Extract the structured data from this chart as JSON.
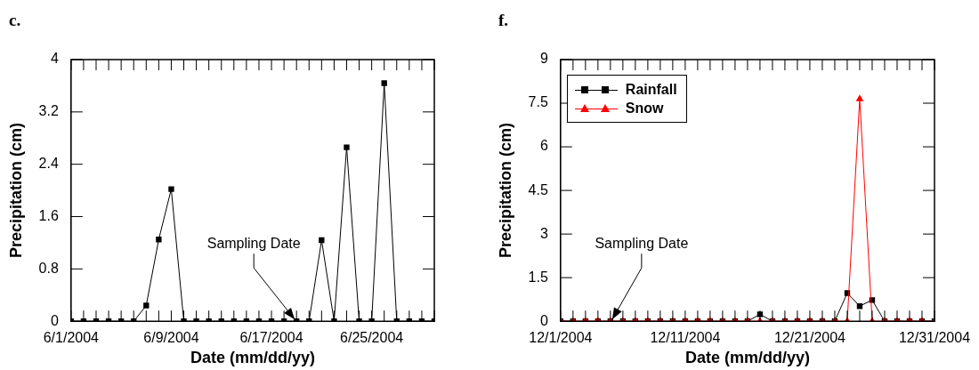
{
  "chart_data": [
    {
      "type": "line",
      "title": "c.",
      "xlabel": "Date (mm/dd/yy)",
      "ylabel": "Precipitation (cm)",
      "x": [
        "2004-06-01",
        "2004-06-02",
        "2004-06-03",
        "2004-06-04",
        "2004-06-05",
        "2004-06-06",
        "2004-06-07",
        "2004-06-08",
        "2004-06-09",
        "2004-06-10",
        "2004-06-11",
        "2004-06-12",
        "2004-06-13",
        "2004-06-14",
        "2004-06-15",
        "2004-06-16",
        "2004-06-17",
        "2004-06-18",
        "2004-06-19",
        "2004-06-20",
        "2004-06-21",
        "2004-06-22",
        "2004-06-23",
        "2004-06-24",
        "2004-06-25",
        "2004-06-26",
        "2004-06-27",
        "2004-06-28",
        "2004-06-29",
        "2004-06-30"
      ],
      "series": [
        {
          "color": "#000000",
          "marker": "square",
          "values": [
            0,
            0,
            0,
            0,
            0,
            0,
            0.24,
            1.25,
            2.02,
            0,
            0,
            0,
            0,
            0,
            0,
            0,
            0,
            0,
            0,
            0,
            1.24,
            0,
            2.66,
            0,
            0,
            3.64,
            0,
            0,
            0,
            0
          ]
        }
      ],
      "xlim": [
        "2004-06-01",
        "2004-06-30"
      ],
      "xticks": [
        {
          "value": "2004-06-01",
          "label": "6/1/2004"
        },
        {
          "value": "2004-06-02",
          "label": null
        },
        {
          "value": "2004-06-03",
          "label": null
        },
        {
          "value": "2004-06-04",
          "label": null
        },
        {
          "value": "2004-06-05",
          "label": null
        },
        {
          "value": "2004-06-06",
          "label": null
        },
        {
          "value": "2004-06-07",
          "label": null
        },
        {
          "value": "2004-06-08",
          "label": null
        },
        {
          "value": "2004-06-09",
          "label": "6/9/2004"
        },
        {
          "value": "2004-06-10",
          "label": null
        },
        {
          "value": "2004-06-11",
          "label": null
        },
        {
          "value": "2004-06-12",
          "label": null
        },
        {
          "value": "2004-06-13",
          "label": null
        },
        {
          "value": "2004-06-14",
          "label": null
        },
        {
          "value": "2004-06-15",
          "label": null
        },
        {
          "value": "2004-06-16",
          "label": null
        },
        {
          "value": "2004-06-17",
          "label": "6/17/2004"
        },
        {
          "value": "2004-06-18",
          "label": null
        },
        {
          "value": "2004-06-19",
          "label": null
        },
        {
          "value": "2004-06-20",
          "label": null
        },
        {
          "value": "2004-06-21",
          "label": null
        },
        {
          "value": "2004-06-22",
          "label": null
        },
        {
          "value": "2004-06-23",
          "label": null
        },
        {
          "value": "2004-06-24",
          "label": null
        },
        {
          "value": "2004-06-25",
          "label": "6/25/2004"
        },
        {
          "value": "2004-06-26",
          "label": null
        },
        {
          "value": "2004-06-27",
          "label": null
        },
        {
          "value": "2004-06-28",
          "label": null
        },
        {
          "value": "2004-06-29",
          "label": null
        },
        {
          "value": "2004-06-30",
          "label": null
        }
      ],
      "ylim": [
        0,
        4
      ],
      "yticks": [
        0,
        0.8,
        1.6,
        2.4,
        3.2,
        4
      ],
      "grid": false,
      "legend": false,
      "annotations": [
        {
          "text": "Sampling Date",
          "x": "2004-06-19",
          "y": 0
        }
      ]
    },
    {
      "type": "line",
      "title": "f.",
      "xlabel": "Date (mm/dd/yy)",
      "ylabel": "Precipitation (cm)",
      "x": [
        "2004-12-01",
        "2004-12-02",
        "2004-12-03",
        "2004-12-04",
        "2004-12-05",
        "2004-12-06",
        "2004-12-07",
        "2004-12-08",
        "2004-12-09",
        "2004-12-10",
        "2004-12-11",
        "2004-12-12",
        "2004-12-13",
        "2004-12-14",
        "2004-12-15",
        "2004-12-16",
        "2004-12-17",
        "2004-12-18",
        "2004-12-19",
        "2004-12-20",
        "2004-12-21",
        "2004-12-22",
        "2004-12-23",
        "2004-12-24",
        "2004-12-25",
        "2004-12-26",
        "2004-12-27",
        "2004-12-28",
        "2004-12-29",
        "2004-12-30",
        "2004-12-31"
      ],
      "series": [
        {
          "name": "Rainfall",
          "color": "#000000",
          "marker": "square",
          "values": [
            0,
            0,
            0,
            0,
            0,
            0,
            0,
            0,
            0,
            0,
            0,
            0,
            0,
            0,
            0,
            0,
            0.24,
            0,
            0,
            0,
            0,
            0,
            0,
            0.97,
            0.52,
            0.73,
            0,
            0,
            0,
            0,
            0
          ]
        },
        {
          "name": "Snow",
          "color": "#ff0000",
          "marker": "triangle",
          "values": [
            0,
            0,
            0,
            0,
            0,
            0,
            0,
            0,
            0,
            0,
            0,
            0,
            0,
            0,
            0,
            0,
            0,
            0,
            0,
            0,
            0,
            0,
            0,
            0,
            7.65,
            0,
            0,
            0,
            0,
            0,
            0
          ]
        }
      ],
      "xlim": [
        "2004-12-01",
        "2004-12-31"
      ],
      "xticks": [
        {
          "value": "2004-12-01",
          "label": "12/1/2004"
        },
        {
          "value": "2004-12-02",
          "label": null
        },
        {
          "value": "2004-12-03",
          "label": null
        },
        {
          "value": "2004-12-04",
          "label": null
        },
        {
          "value": "2004-12-05",
          "label": null
        },
        {
          "value": "2004-12-06",
          "label": null
        },
        {
          "value": "2004-12-07",
          "label": null
        },
        {
          "value": "2004-12-08",
          "label": null
        },
        {
          "value": "2004-12-09",
          "label": null
        },
        {
          "value": "2004-12-10",
          "label": null
        },
        {
          "value": "2004-12-11",
          "label": "12/11/2004"
        },
        {
          "value": "2004-12-12",
          "label": null
        },
        {
          "value": "2004-12-13",
          "label": null
        },
        {
          "value": "2004-12-14",
          "label": null
        },
        {
          "value": "2004-12-15",
          "label": null
        },
        {
          "value": "2004-12-16",
          "label": null
        },
        {
          "value": "2004-12-17",
          "label": null
        },
        {
          "value": "2004-12-18",
          "label": null
        },
        {
          "value": "2004-12-19",
          "label": null
        },
        {
          "value": "2004-12-20",
          "label": null
        },
        {
          "value": "2004-12-21",
          "label": "12/21/2004"
        },
        {
          "value": "2004-12-22",
          "label": null
        },
        {
          "value": "2004-12-23",
          "label": null
        },
        {
          "value": "2004-12-24",
          "label": null
        },
        {
          "value": "2004-12-25",
          "label": null
        },
        {
          "value": "2004-12-26",
          "label": null
        },
        {
          "value": "2004-12-27",
          "label": null
        },
        {
          "value": "2004-12-28",
          "label": null
        },
        {
          "value": "2004-12-29",
          "label": null
        },
        {
          "value": "2004-12-30",
          "label": null
        },
        {
          "value": "2004-12-31",
          "label": "12/31/2004"
        }
      ],
      "ylim": [
        0,
        9
      ],
      "yticks": [
        0,
        1.5,
        3,
        4.5,
        6,
        7.5,
        9
      ],
      "grid": false,
      "legend": "top left",
      "annotations": [
        {
          "text": "Sampling Date",
          "x": "2004-12-05",
          "y": 0
        }
      ]
    }
  ]
}
